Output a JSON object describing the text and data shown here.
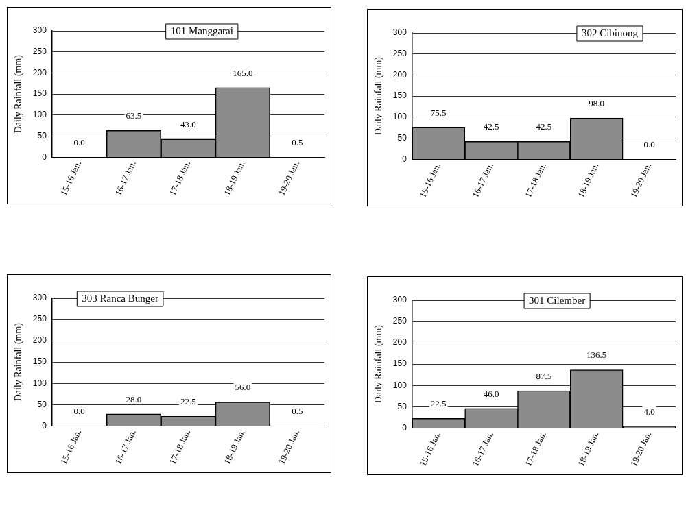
{
  "chart_data": [
    {
      "type": "bar",
      "title": "101 Manggarai",
      "ylabel": "Daily Rainfall (mm)",
      "categories": [
        "15-16 Jan.",
        "16-17 Jan.",
        "17-18 Jan.",
        "18-19 Jan.",
        "19-20 Jan."
      ],
      "values": [
        0,
        63.5,
        43,
        165,
        0.5
      ],
      "value_labels": [
        "0.0",
        "63.5",
        "43.0",
        "165.0",
        "0.5"
      ],
      "color": "#8c8c8c",
      "ylim": [
        0,
        300
      ],
      "yticks": [
        0,
        50,
        100,
        150,
        200,
        250,
        300
      ],
      "grid": "y"
    },
    {
      "type": "bar",
      "title": "302 Cibinong",
      "ylabel": "Daily Rainfall (mm)",
      "categories": [
        "15-16 Jan.",
        "16-17 Jan.",
        "17-18 Jan.",
        "18-19 Jan.",
        "19-20 Jan."
      ],
      "values": [
        75.5,
        42.5,
        42.5,
        98,
        0
      ],
      "value_labels": [
        "75.5",
        "42.5",
        "42.5",
        "98.0",
        "0.0"
      ],
      "color": "#8c8c8c",
      "ylim": [
        0,
        300
      ],
      "yticks": [
        0,
        50,
        100,
        150,
        200,
        250,
        300
      ],
      "grid": "y"
    },
    {
      "type": "bar",
      "title": "303 Ranca Bunger",
      "ylabel": "Daily Rainfall (mm)",
      "categories": [
        "15-16 Jan.",
        "16-17 Jan.",
        "17-18 Jan.",
        "18-19 Jan.",
        "19-20 Jan."
      ],
      "values": [
        0,
        28,
        22.5,
        56,
        0.5
      ],
      "value_labels": [
        "0.0",
        "28.0",
        "22.5",
        "56.0",
        "0.5"
      ],
      "color": "#8c8c8c",
      "ylim": [
        0,
        300
      ],
      "yticks": [
        0,
        50,
        100,
        150,
        200,
        250,
        300
      ],
      "grid": "y"
    },
    {
      "type": "bar",
      "title": "301 Cilember",
      "ylabel": "Daily Rainfall (mm)",
      "categories": [
        "15-16 Jan.",
        "16-17 Jan.",
        "17-18 Jan.",
        "18-19 Jan.",
        "19-20 Jan."
      ],
      "values": [
        22.5,
        46,
        87.5,
        136.5,
        4
      ],
      "value_labels": [
        "22.5",
        "46.0",
        "87.5",
        "136.5",
        "4.0"
      ],
      "color": "#8c8c8c",
      "ylim": [
        0,
        300
      ],
      "yticks": [
        0,
        50,
        100,
        150,
        200,
        250,
        300
      ],
      "grid": "y"
    }
  ]
}
